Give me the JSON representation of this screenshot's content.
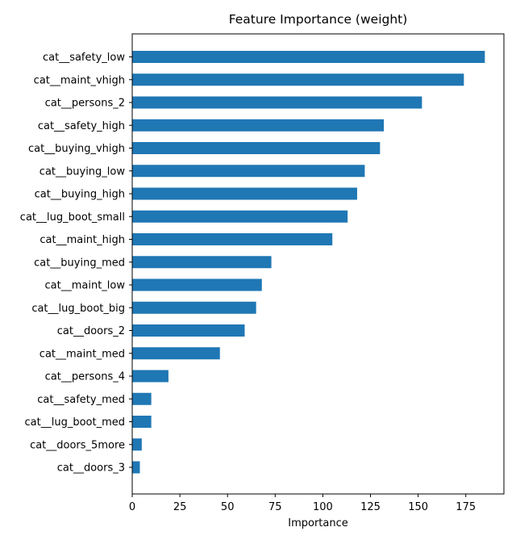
{
  "chart_data": {
    "type": "bar",
    "orientation": "horizontal",
    "title": "Feature Importance (weight)",
    "xlabel": "Importance",
    "ylabel": "",
    "xlim": [
      0,
      195
    ],
    "xticks": [
      0,
      25,
      50,
      75,
      100,
      125,
      150,
      175
    ],
    "grid": false,
    "bar_color": "#1f77b4",
    "categories": [
      "cat__safety_low",
      "cat__maint_vhigh",
      "cat__persons_2",
      "cat__safety_high",
      "cat__buying_vhigh",
      "cat__buying_low",
      "cat__buying_high",
      "cat__lug_boot_small",
      "cat__maint_high",
      "cat__buying_med",
      "cat__maint_low",
      "cat__lug_boot_big",
      "cat__doors_2",
      "cat__maint_med",
      "cat__persons_4",
      "cat__safety_med",
      "cat__lug_boot_med",
      "cat__doors_5more",
      "cat__doors_3"
    ],
    "values": [
      185,
      174,
      152,
      132,
      130,
      122,
      118,
      113,
      105,
      73,
      68,
      65,
      59,
      46,
      19,
      10,
      10,
      5,
      4
    ]
  }
}
